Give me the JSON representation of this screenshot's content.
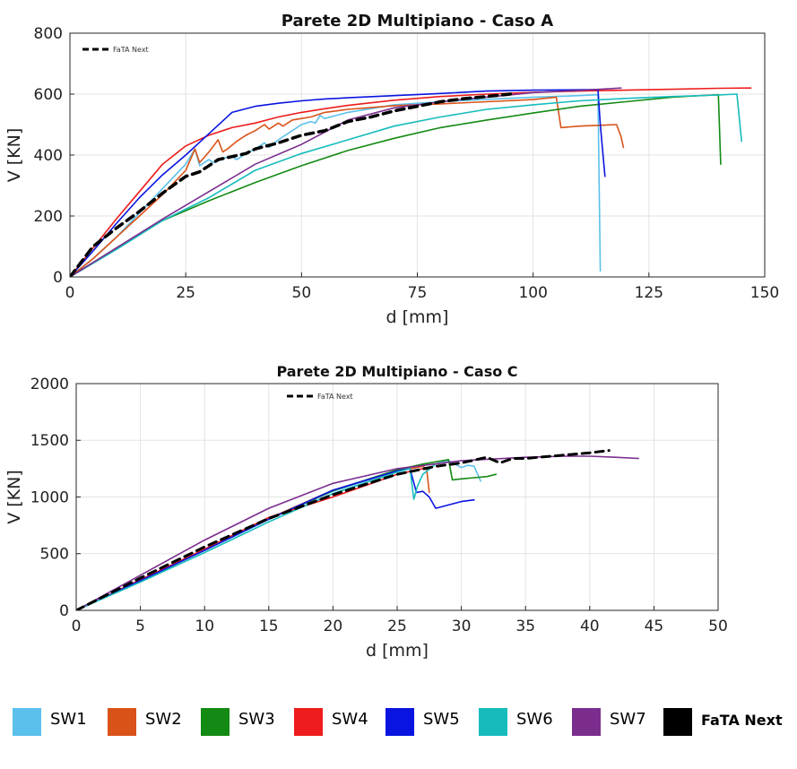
{
  "colors": {
    "SW1": "#5bc0eb",
    "SW2": "#d95319",
    "SW3": "#138a13",
    "SW4": "#ee1c1c",
    "SW5": "#0a14e0",
    "SW6": "#16bcbc",
    "SW7": "#7b2d8e",
    "FaTA Next": "#000000"
  },
  "legend": {
    "items": [
      {
        "label": "SW1",
        "color": "#5bc0eb"
      },
      {
        "label": "SW2",
        "color": "#d95319"
      },
      {
        "label": "SW3",
        "color": "#138a13"
      },
      {
        "label": "SW4",
        "color": "#ee1c1c"
      },
      {
        "label": "SW5",
        "color": "#0a14e0"
      },
      {
        "label": "SW6",
        "color": "#16bcbc"
      },
      {
        "label": "SW7",
        "color": "#7b2d8e"
      },
      {
        "label": "FaTA Next",
        "color": "#000000"
      }
    ]
  },
  "chart_data": [
    {
      "type": "line",
      "title": "Parete 2D Multipiano - Caso A",
      "xlabel": "d [mm]",
      "ylabel": "V [KN]",
      "xlim": [
        0,
        150
      ],
      "ylim": [
        0,
        800
      ],
      "xticks": [
        0,
        25,
        50,
        75,
        100,
        125,
        150
      ],
      "yticks": [
        0,
        200,
        400,
        600,
        800
      ],
      "grid": true,
      "inner_legend": "FaTA Next",
      "series": [
        {
          "name": "SW1",
          "x": [
            0,
            5,
            10,
            15,
            20,
            25,
            27,
            28,
            30,
            31,
            32,
            33,
            35,
            36,
            38,
            40,
            42,
            43,
            45,
            48,
            50,
            52,
            53,
            54,
            55,
            60,
            70,
            80,
            90,
            100,
            110,
            114,
            114.5
          ],
          "y": [
            0,
            60,
            130,
            210,
            290,
            370,
            420,
            365,
            385,
            375,
            380,
            390,
            395,
            385,
            405,
            420,
            440,
            425,
            450,
            480,
            500,
            510,
            505,
            530,
            520,
            540,
            565,
            575,
            583,
            590,
            595,
            598,
            20
          ]
        },
        {
          "name": "SW2",
          "x": [
            0,
            5,
            10,
            15,
            20,
            25,
            27,
            28,
            30,
            32,
            33,
            34,
            36,
            38,
            40,
            42,
            43,
            45,
            46,
            48,
            50,
            52,
            55,
            60,
            70,
            80,
            90,
            100,
            105,
            106,
            110,
            115,
            118,
            119,
            119.5
          ],
          "y": [
            0,
            60,
            130,
            200,
            270,
            350,
            420,
            375,
            410,
            450,
            410,
            420,
            445,
            465,
            480,
            500,
            485,
            505,
            495,
            515,
            520,
            525,
            540,
            550,
            562,
            568,
            575,
            582,
            590,
            490,
            495,
            498,
            500,
            460,
            425
          ]
        },
        {
          "name": "SW3",
          "x": [
            0,
            10,
            20,
            30,
            40,
            50,
            60,
            70,
            80,
            90,
            100,
            110,
            120,
            130,
            140,
            140.5
          ],
          "y": [
            0,
            95,
            185,
            250,
            310,
            365,
            415,
            455,
            490,
            515,
            538,
            560,
            575,
            590,
            598,
            370
          ]
        },
        {
          "name": "SW4",
          "x": [
            0,
            5,
            10,
            15,
            20,
            25,
            30,
            35,
            40,
            45,
            50,
            55,
            60,
            70,
            80,
            90,
            100,
            110,
            120,
            130,
            140,
            147
          ],
          "y": [
            0,
            95,
            190,
            280,
            370,
            430,
            465,
            490,
            505,
            525,
            540,
            552,
            563,
            580,
            592,
            600,
            606,
            610,
            613,
            616,
            619,
            620
          ]
        },
        {
          "name": "SW5",
          "x": [
            0,
            5,
            10,
            15,
            20,
            25,
            30,
            35,
            40,
            45,
            50,
            55,
            60,
            70,
            80,
            90,
            100,
            110,
            114,
            114.5,
            115.5
          ],
          "y": [
            0,
            85,
            175,
            260,
            335,
            400,
            470,
            540,
            560,
            570,
            578,
            584,
            588,
            595,
            602,
            610,
            613,
            614,
            615,
            500,
            330
          ]
        },
        {
          "name": "SW6",
          "x": [
            0,
            10,
            20,
            30,
            40,
            50,
            60,
            70,
            80,
            90,
            100,
            110,
            120,
            130,
            140,
            144,
            145
          ],
          "y": [
            0,
            90,
            185,
            260,
            350,
            405,
            450,
            495,
            525,
            550,
            565,
            578,
            586,
            592,
            597,
            600,
            445
          ]
        },
        {
          "name": "SW7",
          "x": [
            0,
            10,
            20,
            30,
            40,
            50,
            60,
            70,
            80,
            90,
            100,
            110,
            119
          ],
          "y": [
            0,
            95,
            190,
            280,
            370,
            435,
            515,
            555,
            575,
            590,
            605,
            612,
            620
          ]
        },
        {
          "name": "FaTA Next",
          "x": [
            0,
            5,
            10,
            15,
            20,
            25,
            28,
            30,
            32,
            35,
            38,
            40,
            45,
            50,
            55,
            60,
            65,
            70,
            75,
            80,
            85,
            90,
            95,
            96
          ],
          "y": [
            0,
            100,
            160,
            215,
            275,
            330,
            345,
            365,
            385,
            395,
            405,
            420,
            440,
            465,
            480,
            510,
            525,
            545,
            560,
            575,
            585,
            592,
            600,
            605
          ]
        }
      ]
    },
    {
      "type": "line",
      "title": "Parete 2D Multipiano - Caso C",
      "xlabel": "d [mm]",
      "ylabel": "V [KN]",
      "xlim": [
        0,
        50
      ],
      "ylim": [
        0,
        2000
      ],
      "xticks": [
        0,
        5,
        10,
        15,
        20,
        25,
        30,
        35,
        40,
        45,
        50
      ],
      "yticks": [
        0,
        500,
        1000,
        1500,
        2000
      ],
      "grid": true,
      "inner_legend": "FaTA Next",
      "series": [
        {
          "name": "SW1",
          "x": [
            0,
            5,
            10,
            15,
            20,
            25,
            26,
            27,
            28,
            28.5,
            29,
            29.5,
            30,
            30.5,
            31,
            31.5
          ],
          "y": [
            0,
            260,
            530,
            800,
            1050,
            1230,
            1260,
            1280,
            1290,
            1310,
            1320,
            1290,
            1260,
            1280,
            1270,
            1140
          ]
        },
        {
          "name": "SW2",
          "x": [
            0,
            5,
            10,
            15,
            20,
            25,
            26,
            27,
            27.3,
            27.5
          ],
          "y": [
            0,
            265,
            535,
            810,
            1060,
            1230,
            1250,
            1270,
            1250,
            1040
          ]
        },
        {
          "name": "SW3",
          "x": [
            0,
            5,
            10,
            15,
            20,
            25,
            27,
            28,
            29,
            29.3,
            30,
            31,
            32,
            32.7
          ],
          "y": [
            0,
            262,
            532,
            805,
            1055,
            1240,
            1290,
            1310,
            1330,
            1150,
            1160,
            1170,
            1180,
            1200
          ]
        },
        {
          "name": "SW4",
          "x": [
            0,
            5,
            10,
            15,
            20,
            25,
            27
          ],
          "y": [
            0,
            270,
            540,
            820,
            1000,
            1200,
            1250
          ]
        },
        {
          "name": "SW5",
          "x": [
            0,
            5,
            10,
            15,
            20,
            25,
            26,
            26.5,
            27,
            27.5,
            28,
            29,
            30,
            31
          ],
          "y": [
            0,
            262,
            530,
            805,
            1060,
            1230,
            1250,
            1040,
            1050,
            1000,
            900,
            930,
            960,
            975
          ]
        },
        {
          "name": "SW6",
          "x": [
            0,
            5,
            10,
            15,
            20,
            25,
            26,
            26.3,
            26.6,
            27,
            28
          ],
          "y": [
            0,
            250,
            510,
            780,
            1030,
            1220,
            1250,
            980,
            1100,
            1200,
            1290
          ]
        },
        {
          "name": "SW7",
          "x": [
            0,
            5,
            10,
            15,
            20,
            25,
            30,
            35,
            38,
            40,
            42,
            43.8
          ],
          "y": [
            0,
            310,
            620,
            900,
            1120,
            1250,
            1320,
            1350,
            1360,
            1360,
            1350,
            1340
          ]
        },
        {
          "name": "FaTA Next",
          "x": [
            0,
            5,
            10,
            15,
            20,
            25,
            28,
            30,
            32,
            33,
            34,
            35,
            37,
            40,
            41.5
          ],
          "y": [
            0,
            285,
            560,
            810,
            1020,
            1200,
            1270,
            1300,
            1350,
            1300,
            1340,
            1340,
            1360,
            1390,
            1410
          ]
        }
      ]
    }
  ]
}
